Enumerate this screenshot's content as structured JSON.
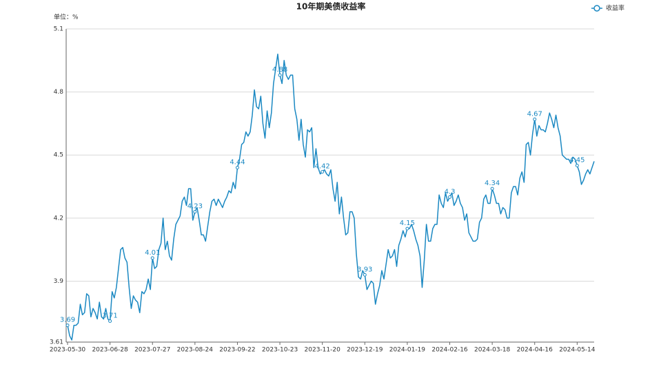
{
  "chart_data": {
    "type": "line",
    "title": "10年期美债收益率",
    "y_unit_label": "单位：%",
    "categories": [
      "2023-05-30",
      null,
      null,
      null,
      null,
      null,
      null,
      null,
      null,
      null,
      null,
      null,
      null,
      null,
      null,
      null,
      null,
      null,
      null,
      null,
      "2023-06-28",
      null,
      null,
      null,
      null,
      null,
      null,
      null,
      null,
      null,
      null,
      null,
      null,
      null,
      null,
      null,
      null,
      null,
      null,
      null,
      "2023-07-27",
      null,
      null,
      null,
      null,
      null,
      null,
      null,
      null,
      null,
      null,
      null,
      null,
      null,
      null,
      null,
      null,
      null,
      null,
      null,
      "2023-08-24",
      null,
      null,
      null,
      null,
      null,
      null,
      null,
      null,
      null,
      null,
      null,
      null,
      null,
      null,
      null,
      null,
      null,
      null,
      null,
      "2023-09-22",
      null,
      null,
      null,
      null,
      null,
      null,
      null,
      null,
      null,
      null,
      null,
      null,
      null,
      null,
      null,
      null,
      null,
      null,
      null,
      "2023-10-23",
      null,
      null,
      null,
      null,
      null,
      null,
      null,
      null,
      null,
      null,
      null,
      null,
      null,
      null,
      null,
      null,
      null,
      null,
      null,
      "2023-11-20",
      null,
      null,
      null,
      null,
      null,
      null,
      null,
      null,
      null,
      null,
      null,
      null,
      null,
      null,
      null,
      null,
      null,
      null,
      null,
      "2023-12-19",
      null,
      null,
      null,
      null,
      null,
      null,
      null,
      null,
      null,
      null,
      null,
      null,
      null,
      null,
      null,
      null,
      null,
      null,
      null,
      "2024-01-19",
      null,
      null,
      null,
      null,
      null,
      null,
      null,
      null,
      null,
      null,
      null,
      null,
      null,
      null,
      null,
      null,
      null,
      null,
      null,
      "2024-02-16",
      null,
      null,
      null,
      null,
      null,
      null,
      null,
      null,
      null,
      null,
      null,
      null,
      null,
      null,
      null,
      null,
      null,
      null,
      null,
      "2024-03-18",
      null,
      null,
      null,
      null,
      null,
      null,
      null,
      null,
      null,
      null,
      null,
      null,
      null,
      null,
      null,
      null,
      null,
      null,
      null,
      "2024-04-16",
      null,
      null,
      null,
      null,
      null,
      null,
      null,
      null,
      null,
      null,
      null,
      null,
      null,
      null,
      null,
      null,
      null,
      null,
      null,
      "2024-05-14",
      null,
      null,
      null,
      null,
      null,
      null,
      null,
      null
    ],
    "series": [
      {
        "name": "收益率",
        "color": "#1a88c2",
        "values": [
          3.69,
          3.64,
          3.62,
          3.69,
          3.69,
          3.7,
          3.79,
          3.74,
          3.75,
          3.84,
          3.83,
          3.73,
          3.77,
          3.75,
          3.72,
          3.8,
          3.73,
          3.72,
          3.77,
          3.72,
          3.71,
          3.85,
          3.82,
          3.87,
          3.96,
          4.05,
          4.06,
          4.01,
          3.99,
          3.87,
          3.77,
          3.83,
          3.81,
          3.8,
          3.75,
          3.85,
          3.84,
          3.86,
          3.91,
          3.86,
          4.01,
          3.96,
          3.97,
          4.05,
          4.08,
          4.2,
          4.05,
          4.09,
          4.02,
          4.0,
          4.1,
          4.17,
          4.19,
          4.21,
          4.28,
          4.3,
          4.26,
          4.34,
          4.34,
          4.19,
          4.23,
          4.25,
          4.19,
          4.12,
          4.12,
          4.09,
          4.16,
          4.23,
          4.28,
          4.29,
          4.26,
          4.29,
          4.27,
          4.25,
          4.28,
          4.3,
          4.33,
          4.32,
          4.37,
          4.34,
          4.44,
          4.48,
          4.55,
          4.56,
          4.61,
          4.59,
          4.61,
          4.69,
          4.81,
          4.73,
          4.72,
          4.78,
          4.65,
          4.58,
          4.71,
          4.63,
          4.7,
          4.84,
          4.91,
          4.98,
          4.88,
          4.84,
          4.95,
          4.88,
          4.86,
          4.88,
          4.88,
          4.72,
          4.67,
          4.57,
          4.67,
          4.55,
          4.49,
          4.62,
          4.61,
          4.63,
          4.44,
          4.53,
          4.44,
          4.41,
          4.42,
          4.43,
          4.41,
          4.4,
          4.43,
          4.34,
          4.28,
          4.37,
          4.22,
          4.3,
          4.2,
          4.12,
          4.13,
          4.23,
          4.23,
          4.2,
          4.03,
          3.92,
          3.91,
          3.95,
          3.93,
          3.86,
          3.88,
          3.9,
          3.89,
          3.79,
          3.84,
          3.88,
          3.95,
          3.91,
          3.98,
          4.05,
          4.01,
          4.02,
          4.05,
          3.97,
          4.07,
          4.1,
          4.14,
          4.11,
          4.15,
          4.15,
          4.17,
          4.14,
          4.1,
          4.07,
          4.02,
          3.87,
          4.0,
          4.17,
          4.09,
          4.09,
          4.15,
          4.17,
          4.17,
          4.31,
          4.27,
          4.25,
          4.32,
          4.28,
          4.3,
          4.32,
          4.26,
          4.28,
          4.31,
          4.27,
          4.25,
          4.19,
          4.22,
          4.13,
          4.11,
          4.09,
          4.09,
          4.1,
          4.18,
          4.2,
          4.29,
          4.31,
          4.27,
          4.27,
          4.34,
          4.31,
          4.27,
          4.27,
          4.22,
          4.25,
          4.24,
          4.2,
          4.2,
          4.32,
          4.35,
          4.35,
          4.31,
          4.39,
          4.42,
          4.37,
          4.55,
          4.56,
          4.5,
          4.6,
          4.67,
          4.59,
          4.64,
          4.62,
          4.62,
          4.61,
          4.65,
          4.7,
          4.67,
          4.63,
          4.69,
          4.63,
          4.59,
          4.5,
          4.49,
          4.48,
          4.48,
          4.46,
          4.49,
          4.48,
          4.45,
          4.42,
          4.36,
          4.38,
          4.41,
          4.43,
          4.41,
          4.44,
          4.47
        ]
      }
    ],
    "ylim": [
      3.61,
      5.1
    ],
    "yticks": [
      3.61,
      3.9,
      4.2,
      4.5,
      4.8,
      5.1
    ],
    "grid": true,
    "legend": "top-right"
  }
}
